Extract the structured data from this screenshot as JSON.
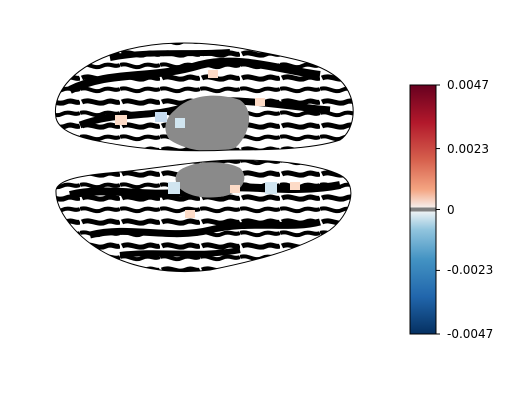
{
  "figure": {
    "kind": "brain-surface-map",
    "hemispheres": [
      "top-view",
      "bottom-view"
    ],
    "medial_wall_color": "#8a8a8a",
    "sulcus_color": "#000000",
    "gyrus_color": "#ffffff"
  },
  "colorbar": {
    "colormap": "RdBu_r",
    "colors": {
      "max": "#67001f",
      "high": "#d6604d",
      "mid": "#f7f7f7",
      "low": "#4393c3",
      "min": "#053061",
      "zero_marker": "#808080"
    },
    "max": 0.0047,
    "min": -0.0047,
    "ticks": [
      {
        "value": 0.0047,
        "label": "0.0047"
      },
      {
        "value": 0.0023,
        "label": "0.0023"
      },
      {
        "value": 0,
        "label": "0"
      },
      {
        "value": -0.0023,
        "label": "-0.0023"
      },
      {
        "value": -0.0047,
        "label": "-0.0047"
      }
    ]
  }
}
